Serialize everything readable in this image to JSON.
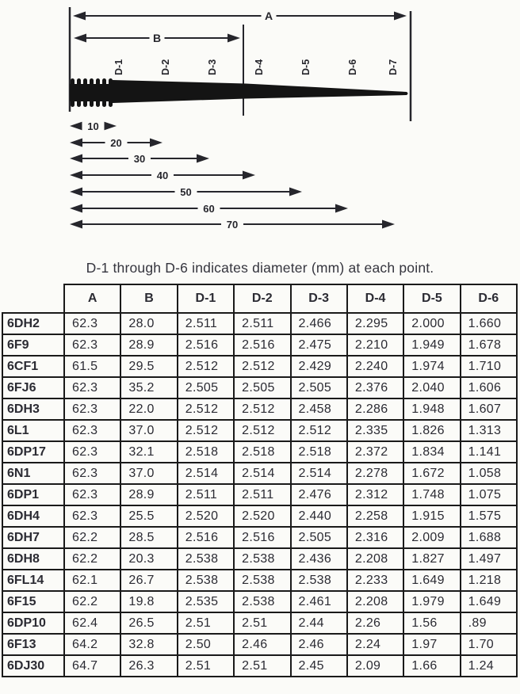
{
  "caption": "D-1 through D-6 indicates diameter (mm) at each point.",
  "diagram": {
    "overall_dim_label": "A",
    "taper_dim_label": "B",
    "point_labels": [
      "D-1",
      "D-2",
      "D-3",
      "D-4",
      "D-5",
      "D-6",
      "D-7"
    ],
    "distances": [
      10,
      20,
      30,
      40,
      50,
      60,
      70
    ]
  },
  "table": {
    "headers": [
      "",
      "A",
      "B",
      "D-1",
      "D-2",
      "D-3",
      "D-4",
      "D-5",
      "D-6"
    ],
    "rows": [
      [
        "6DH2",
        "62.3",
        "28.0",
        "2.511",
        "2.511",
        "2.466",
        "2.295",
        "2.000",
        "1.660"
      ],
      [
        "6F9",
        "62.3",
        "28.9",
        "2.516",
        "2.516",
        "2.475",
        "2.210",
        "1.949",
        "1.678"
      ],
      [
        "6CF1",
        "61.5",
        "29.5",
        "2.512",
        "2.512",
        "2.429",
        "2.240",
        "1.974",
        "1.710"
      ],
      [
        "6FJ6",
        "62.3",
        "35.2",
        "2.505",
        "2.505",
        "2.505",
        "2.376",
        "2.040",
        "1.606"
      ],
      [
        "6DH3",
        "62.3",
        "22.0",
        "2.512",
        "2.512",
        "2.458",
        "2.286",
        "1.948",
        "1.607"
      ],
      [
        "6L1",
        "62.3",
        "37.0",
        "2.512",
        "2.512",
        "2.512",
        "2.335",
        "1.826",
        "1.313"
      ],
      [
        "6DP17",
        "62.3",
        "32.1",
        "2.518",
        "2.518",
        "2.518",
        "2.372",
        "1.834",
        "1.141"
      ],
      [
        "6N1",
        "62.3",
        "37.0",
        "2.514",
        "2.514",
        "2.514",
        "2.278",
        "1.672",
        "1.058"
      ],
      [
        "6DP1",
        "62.3",
        "28.9",
        "2.511",
        "2.511",
        "2.476",
        "2.312",
        "1.748",
        "1.075"
      ],
      [
        "6DH4",
        "62.3",
        "25.5",
        "2.520",
        "2.520",
        "2.440",
        "2.258",
        "1.915",
        "1.575"
      ],
      [
        "6DH7",
        "62.2",
        "28.5",
        "2.516",
        "2.516",
        "2.505",
        "2.316",
        "2.009",
        "1.688"
      ],
      [
        "6DH8",
        "62.2",
        "20.3",
        "2.538",
        "2.538",
        "2.436",
        "2.208",
        "1.827",
        "1.497"
      ],
      [
        "6FL14",
        "62.1",
        "26.7",
        "2.538",
        "2.538",
        "2.538",
        "2.233",
        "1.649",
        "1.218"
      ],
      [
        "6F15",
        "62.2",
        "19.8",
        "2.535",
        "2.538",
        "2.461",
        "2.208",
        "1.979",
        "1.649"
      ],
      [
        "6DP10",
        "62.4",
        "26.5",
        "2.51",
        "2.51",
        "2.44",
        "2.26",
        "1.56",
        ".89"
      ],
      [
        "6F13",
        "64.2",
        "32.8",
        "2.50",
        "2.46",
        "2.46",
        "2.24",
        "1.97",
        "1.70"
      ],
      [
        "6DJ30",
        "64.7",
        "26.3",
        "2.51",
        "2.51",
        "2.45",
        "2.09",
        "1.66",
        "1.24"
      ]
    ]
  }
}
